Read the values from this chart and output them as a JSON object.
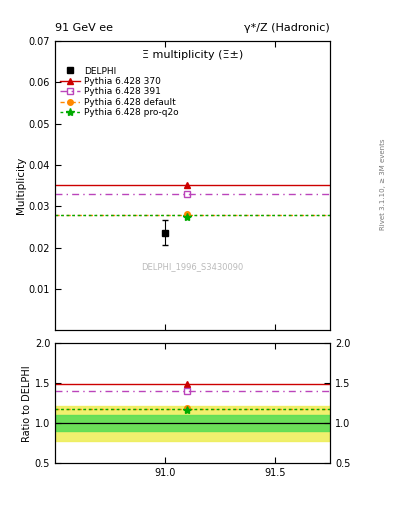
{
  "title_top": "91 GeV ee",
  "title_right": "γ*/Z (Hadronic)",
  "plot_title": "Ξ multiplicity (Ξ±)",
  "ylabel_main": "Multiplicity",
  "ylabel_ratio": "Ratio to DELPHI",
  "watermark": "DELPHI_1996_S3430090",
  "right_label": "Rivet 3.1.10, ≥ 3M events",
  "xlim": [
    90.5,
    91.75
  ],
  "xticks": [
    91.0,
    91.5
  ],
  "ylim_main": [
    0.0,
    0.07
  ],
  "ylim_ratio": [
    0.5,
    2.0
  ],
  "yticks_main": [
    0.01,
    0.02,
    0.03,
    0.04,
    0.05,
    0.06,
    0.07
  ],
  "yticks_ratio": [
    0.5,
    1.0,
    1.5,
    2.0
  ],
  "data_x": 91.0,
  "data_y": 0.0236,
  "data_yerr": 0.003,
  "line_370_y": 0.0352,
  "line_391_y": 0.033,
  "line_default_y": 0.0278,
  "line_proq2o_y": 0.0278,
  "line_370_color": "#cc0000",
  "line_391_color": "#bb44bb",
  "line_default_color": "#ff8800",
  "line_proq2o_color": "#00aa00",
  "ratio_370": 1.49,
  "ratio_391": 1.4,
  "ratio_default": 1.18,
  "ratio_proq2o": 1.18,
  "band_green_lo": 0.9,
  "band_green_hi": 1.1,
  "band_yellow_lo": 0.78,
  "band_yellow_hi": 1.22,
  "legend_entries": [
    "DELPHI",
    "Pythia 6.428 370",
    "Pythia 6.428 391",
    "Pythia 6.428 default",
    "Pythia 6.428 pro-q2o"
  ]
}
